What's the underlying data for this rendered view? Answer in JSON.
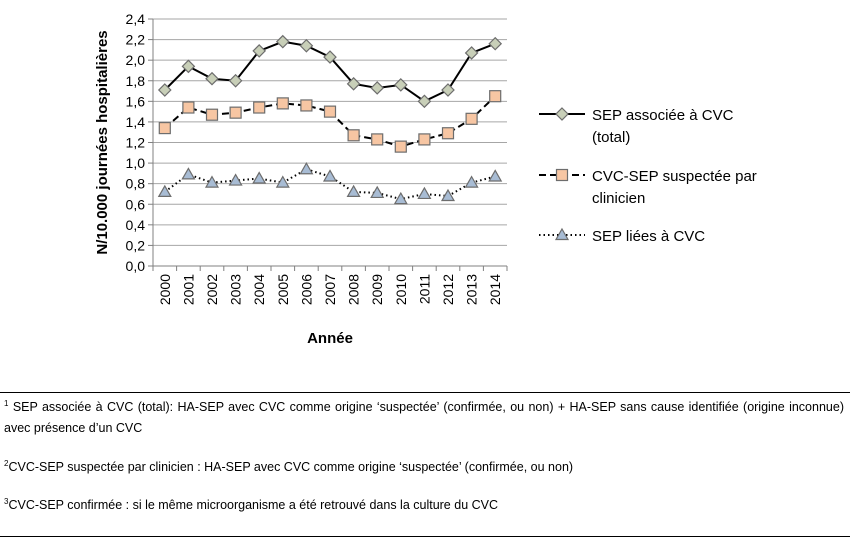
{
  "chart_data": {
    "type": "line",
    "title": "",
    "xlabel": "Année",
    "ylabel": "N/10.000 journées hospitalières",
    "ylim": [
      0,
      2.4
    ],
    "y_ticks": [
      "0,0",
      "0,2",
      "0,4",
      "0,6",
      "0,8",
      "1,0",
      "1,2",
      "1,4",
      "1,6",
      "1,8",
      "2,0",
      "2,2",
      "2,4"
    ],
    "grid": true,
    "legend_position": "right",
    "categories": [
      "2000",
      "2001",
      "2002",
      "2003",
      "2004",
      "2005",
      "2006",
      "2007",
      "2008",
      "2009",
      "2010",
      "2011",
      "2012",
      "2013",
      "2014"
    ],
    "series": [
      {
        "name": "SEP associée  à CVC (total)",
        "legend_lines": [
          "SEP associée  à CVC",
          "(total)"
        ],
        "marker": "diamond",
        "line_style": "solid",
        "marker_color": "#c8cfb8",
        "values": [
          1.71,
          1.94,
          1.82,
          1.8,
          2.09,
          2.18,
          2.14,
          2.03,
          1.77,
          1.73,
          1.76,
          1.6,
          1.71,
          2.07,
          2.16
        ]
      },
      {
        "name": "CVC-SEP suspectée par clinicien",
        "legend_lines": [
          "CVC-SEP suspectée par",
          "clinicien"
        ],
        "marker": "square",
        "line_style": "dashed",
        "marker_color": "#f7c6a3",
        "values": [
          1.34,
          1.54,
          1.47,
          1.49,
          1.54,
          1.58,
          1.56,
          1.5,
          1.27,
          1.23,
          1.16,
          1.23,
          1.29,
          1.43,
          1.65
        ]
      },
      {
        "name": "SEP liées à CVC",
        "legend_lines": [
          "SEP liées à CVC"
        ],
        "marker": "triangle",
        "line_style": "dotted",
        "marker_color": "#a8bcd4",
        "values": [
          0.72,
          0.89,
          0.81,
          0.83,
          0.85,
          0.81,
          0.94,
          0.87,
          0.72,
          0.71,
          0.65,
          0.7,
          0.68,
          0.81,
          0.87
        ]
      }
    ]
  },
  "notes": [
    {
      "mark": "1",
      "text": "SEP associée à CVC (total): HA-SEP avec CVC comme origine ‘suspectée’ (confirmée, ou non) + HA-SEP sans cause identifiée (origine inconnue) avec présence d’un CVC"
    },
    {
      "mark": "2",
      "text": "CVC-SEP suspectée par clinicien : HA-SEP avec CVC comme origine ‘suspectée’ (confirmée, ou non)"
    },
    {
      "mark": "3",
      "text": "CVC-SEP confirmée : si le même microorganisme a été retrouvé dans la culture du CVC"
    }
  ]
}
